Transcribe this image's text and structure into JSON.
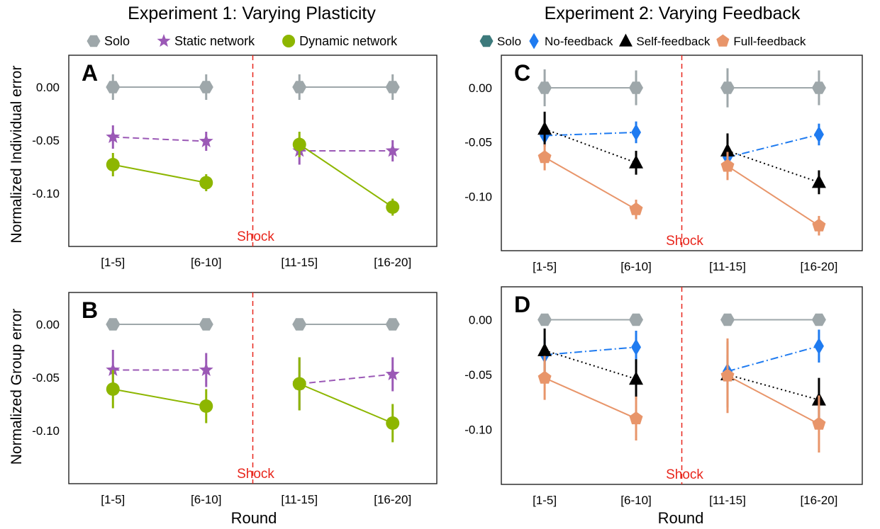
{
  "figure": {
    "left_title": "Experiment 1: Varying Plasticity",
    "right_title": "Experiment 2: Varying Feedback",
    "left_legend": [
      {
        "name": "Solo",
        "marker": "hexagon",
        "color": "#9ea7aa"
      },
      {
        "name": "Static network",
        "marker": "star",
        "color": "#9b59b6"
      },
      {
        "name": "Dynamic network",
        "marker": "circle",
        "color": "#8db600"
      }
    ],
    "right_legend": [
      {
        "name": "Solo",
        "marker": "hexagon",
        "color": "#3d7a7c"
      },
      {
        "name": "No-feedback",
        "marker": "diamond",
        "color": "#1f7bf0"
      },
      {
        "name": "Self-feedback",
        "marker": "triangle",
        "color": "#000000"
      },
      {
        "name": "Full-feedback",
        "marker": "pentagon",
        "color": "#e8956a"
      }
    ],
    "ylabel_top": "Normalized Individual error",
    "ylabel_bottom": "Normalized Group error",
    "xlabel": "Round",
    "shock_label": "Shock",
    "shock_color": "#e8261c"
  },
  "chart_data": [
    {
      "type": "line",
      "panel": "A",
      "categories": [
        "[1-5]",
        "[6-10]",
        "[11-15]",
        "[16-20]"
      ],
      "ylim": [
        -0.15,
        0.03
      ],
      "yticks": [
        "0.00",
        "-0.05",
        "-0.10"
      ],
      "ytick_values": [
        0,
        -0.05,
        -0.1
      ],
      "shock_between": [
        1,
        2
      ],
      "series": [
        {
          "name": "Solo",
          "values": [
            0,
            0,
            0,
            0
          ],
          "err": [
            0.012,
            0.012,
            0.012,
            0.012
          ],
          "color": "#9ea7aa",
          "marker": "hexagon",
          "dash": "solid"
        },
        {
          "name": "Static network",
          "values": [
            -0.047,
            -0.051,
            -0.06,
            -0.06
          ],
          "err": [
            0.011,
            0.009,
            0.013,
            0.01
          ],
          "color": "#9b59b6",
          "marker": "star",
          "dash": "dashed"
        },
        {
          "name": "Dynamic network",
          "values": [
            -0.073,
            -0.09,
            -0.054,
            -0.113
          ],
          "err": [
            0.011,
            0.008,
            0.012,
            0.008
          ],
          "color": "#8db600",
          "marker": "circle",
          "dash": "solid"
        }
      ]
    },
    {
      "type": "line",
      "panel": "B",
      "categories": [
        "[1-5]",
        "[6-10]",
        "[11-15]",
        "[16-20]"
      ],
      "ylim": [
        -0.15,
        0.03
      ],
      "yticks": [
        "0.00",
        "-0.05",
        "-0.10"
      ],
      "ytick_values": [
        0,
        -0.05,
        -0.1
      ],
      "shock_between": [
        1,
        2
      ],
      "series": [
        {
          "name": "Solo",
          "values": [
            0,
            0,
            0,
            0
          ],
          "err": [
            0,
            0,
            0,
            0
          ],
          "color": "#9ea7aa",
          "marker": "hexagon",
          "dash": "solid"
        },
        {
          "name": "Static network",
          "values": [
            -0.043,
            -0.043,
            -0.056,
            -0.047
          ],
          "err": [
            0.019,
            0.016,
            0.025,
            0.016
          ],
          "color": "#9b59b6",
          "marker": "star",
          "dash": "dashed"
        },
        {
          "name": "Dynamic network",
          "values": [
            -0.061,
            -0.077,
            -0.056,
            -0.093
          ],
          "err": [
            0.018,
            0.016,
            0.025,
            0.018
          ],
          "color": "#8db600",
          "marker": "circle",
          "dash": "solid"
        }
      ]
    },
    {
      "type": "line",
      "panel": "C",
      "categories": [
        "[1-5]",
        "[6-10]",
        "[11-15]",
        "[16-20]"
      ],
      "ylim": [
        -0.15,
        0.03
      ],
      "yticks": [
        "0.00",
        "-0.05",
        "-0.10"
      ],
      "ytick_values": [
        0,
        -0.05,
        -0.1
      ],
      "shock_between": [
        1,
        2
      ],
      "series": [
        {
          "name": "Solo",
          "values": [
            0,
            0,
            0,
            0
          ],
          "err": [
            0.017,
            0.016,
            0.018,
            0.016
          ],
          "color": "#9ea7aa",
          "marker": "hexagon",
          "dash": "solid"
        },
        {
          "name": "No-feedback",
          "values": [
            -0.044,
            -0.041,
            -0.064,
            -0.043
          ],
          "err": [
            0.01,
            0.01,
            0.01,
            0.01
          ],
          "color": "#1f7bf0",
          "marker": "diamond",
          "dash": "dashdot"
        },
        {
          "name": "Self-feedback",
          "values": [
            -0.038,
            -0.069,
            -0.058,
            -0.087
          ],
          "err": [
            0.016,
            0.011,
            0.016,
            0.011
          ],
          "color": "#000000",
          "marker": "triangle",
          "dash": "dotted"
        },
        {
          "name": "Full-feedback",
          "values": [
            -0.064,
            -0.112,
            -0.072,
            -0.127
          ],
          "err": [
            0.012,
            0.009,
            0.013,
            0.009
          ],
          "color": "#e8956a",
          "marker": "pentagon",
          "dash": "solid"
        }
      ]
    },
    {
      "type": "line",
      "panel": "D",
      "categories": [
        "[1-5]",
        "[6-10]",
        "[11-15]",
        "[16-20]"
      ],
      "ylim": [
        -0.15,
        0.03
      ],
      "yticks": [
        "0.00",
        "-0.05",
        "-0.10"
      ],
      "ytick_values": [
        0,
        -0.05,
        -0.1
      ],
      "shock_between": [
        1,
        2
      ],
      "series": [
        {
          "name": "Solo",
          "values": [
            0,
            0,
            0,
            0
          ],
          "err": [
            0,
            0,
            0,
            0
          ],
          "color": "#9ea7aa",
          "marker": "hexagon",
          "dash": "solid"
        },
        {
          "name": "No-feedback",
          "values": [
            -0.032,
            -0.025,
            -0.047,
            -0.024
          ],
          "err": [
            0.015,
            0.015,
            0.015,
            0.015
          ],
          "color": "#1f7bf0",
          "marker": "diamond",
          "dash": "dashdot"
        },
        {
          "name": "Self-feedback",
          "values": [
            -0.028,
            -0.054,
            -0.05,
            -0.073
          ],
          "err": [
            0.02,
            0.018,
            0.03,
            0.02
          ],
          "color": "#000000",
          "marker": "triangle",
          "dash": "dotted"
        },
        {
          "name": "Full-feedback",
          "values": [
            -0.053,
            -0.09,
            -0.051,
            -0.095
          ],
          "err": [
            0.02,
            0.02,
            0.034,
            0.026
          ],
          "color": "#e8956a",
          "marker": "pentagon",
          "dash": "solid"
        }
      ]
    }
  ]
}
